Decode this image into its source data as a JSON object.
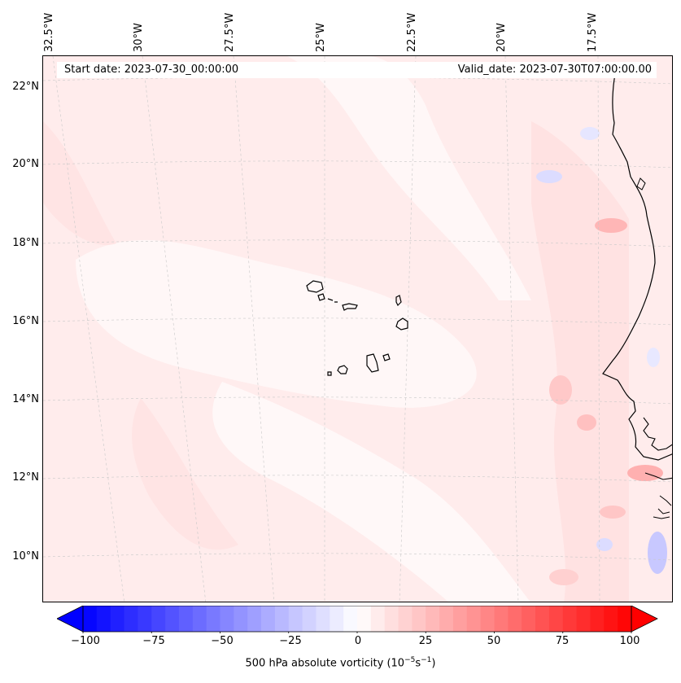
{
  "map": {
    "start_date": "Start date: 2023-07-30_00:00:00",
    "valid_date": "Valid_date: 2023-07-30T07:00:00.00",
    "longitude_labels": [
      "32.5°W",
      "30°W",
      "27.5°W",
      "25°W",
      "22.5°W",
      "20°W",
      "17.5°W"
    ],
    "latitude_labels": [
      "22°N",
      "20°N",
      "18°N",
      "16°N",
      "14°N",
      "12°N",
      "10°N"
    ],
    "colors": {
      "negative": "#0000ff",
      "neutral": "#ffffff",
      "positive": "#ff0000",
      "coastline": "#000000",
      "gridline": "#bbbbbb"
    }
  },
  "colorbar": {
    "label_main": "500 hPa absolute vorticity (10",
    "label_sup1": "−5",
    "label_mid": "s",
    "label_sup2": "−1",
    "label_end": ")",
    "ticks": [
      "−100",
      "−75",
      "−50",
      "−25",
      "0",
      "25",
      "50",
      "75",
      "100"
    ],
    "min": -100,
    "max": 100,
    "extend": "both"
  }
}
